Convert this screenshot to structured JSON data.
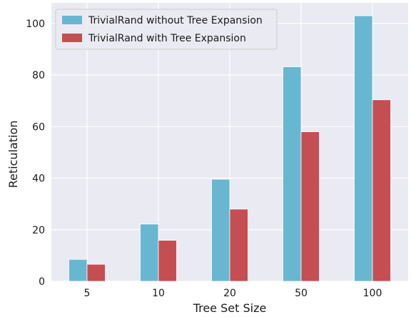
{
  "chart_data": {
    "type": "bar",
    "categories": [
      "5",
      "10",
      "20",
      "50",
      "100"
    ],
    "series": [
      {
        "name": "TrivialRand without Tree Expansion",
        "values": [
          8.5,
          22.2,
          39.6,
          83.2,
          103.0
        ],
        "color": "#67b7d1"
      },
      {
        "name": "TrivialRand with Tree Expansion",
        "values": [
          6.6,
          15.9,
          28.0,
          58.0,
          70.4
        ],
        "color": "#c44e52"
      }
    ],
    "title": "",
    "xlabel": "Tree Set Size",
    "ylabel": "Reticulation",
    "ylim": [
      0,
      108
    ],
    "yticks": [
      0,
      20,
      40,
      60,
      80,
      100
    ],
    "grid": true,
    "legend_position": "top-left",
    "plot_background": "#eaeaf2",
    "grid_color": "#ffffff"
  }
}
